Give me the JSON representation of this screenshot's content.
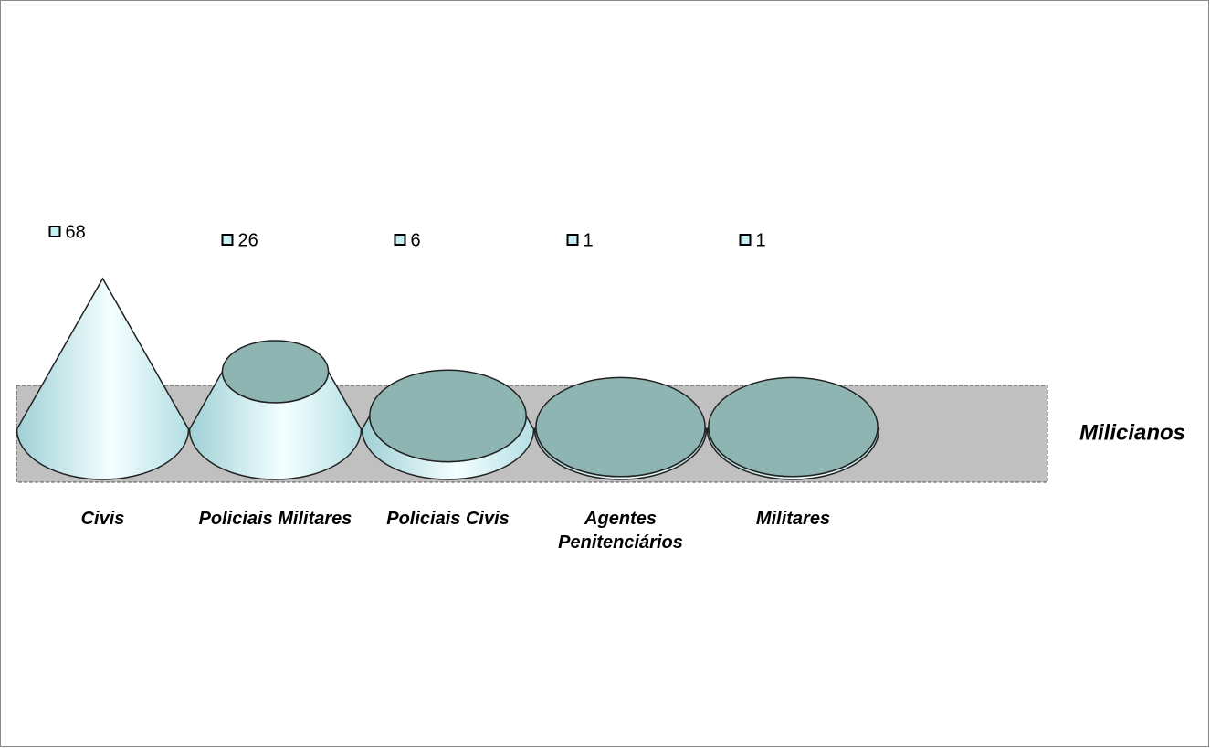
{
  "chart_data": {
    "type": "cone",
    "categories": [
      "Civis",
      "Policiais Militares",
      "Policiais Civis",
      "Agentes Penitenciários",
      "Militares"
    ],
    "series": [
      {
        "name": "Milicianos",
        "color": "#c8f0f4",
        "values": [
          68,
          26,
          6,
          1,
          1
        ]
      }
    ]
  }
}
